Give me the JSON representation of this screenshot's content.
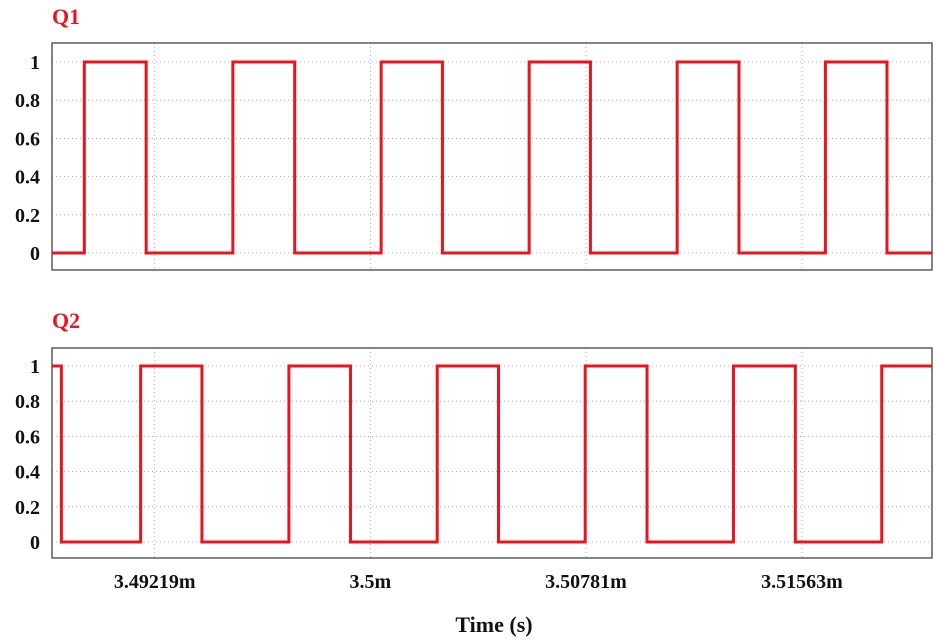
{
  "chart_data": [
    {
      "type": "line",
      "title": "Q1",
      "ylim": [
        0,
        1
      ],
      "yticks": [
        0,
        0.2,
        0.4,
        0.6,
        0.8,
        1
      ],
      "ytick_labels": [
        "0",
        "0.2",
        "0.4",
        "0.6",
        "0.8",
        "1"
      ],
      "xlim": [
        3.48847,
        3.52034
      ],
      "grid": true,
      "color": "#e8141f",
      "series": [
        {
          "x": [
            3.48847,
            3.48964,
            3.48964,
            3.49188,
            3.49188,
            3.49502,
            3.49502,
            3.49726,
            3.49726,
            3.50039,
            3.50039,
            3.50261,
            3.50261,
            3.50575,
            3.50575,
            3.50797,
            3.50797,
            3.51111,
            3.51111,
            3.51335,
            3.51335,
            3.51648,
            3.51648,
            3.51871,
            3.51871,
            3.51933,
            3.51933,
            3.52034
          ],
          "y": [
            0,
            0,
            1,
            1,
            0,
            0,
            1,
            1,
            0,
            0,
            1,
            1,
            0,
            0,
            1,
            1,
            0,
            0,
            1,
            1,
            0,
            0,
            1,
            1,
            0,
            0,
            0,
            0
          ]
        }
      ]
    },
    {
      "type": "line",
      "title": "Q2",
      "ylim": [
        0,
        1
      ],
      "yticks": [
        0,
        0.2,
        0.4,
        0.6,
        0.8,
        1
      ],
      "ytick_labels": [
        "0",
        "0.2",
        "0.4",
        "0.6",
        "0.8",
        "1"
      ],
      "xlim": [
        3.48847,
        3.52034
      ],
      "xticks": [
        3.49219,
        3.5,
        3.50781,
        3.51563
      ],
      "xtick_labels": [
        "3.49219m",
        "3.5m",
        "3.50781m",
        "3.51563m"
      ],
      "xlabel": "Time (s)",
      "grid": true,
      "color": "#e8141f",
      "series": [
        {
          "x": [
            3.48847,
            3.48881,
            3.48881,
            3.49168,
            3.49168,
            3.4939,
            3.4939,
            3.49705,
            3.49705,
            3.49928,
            3.49928,
            3.50242,
            3.50242,
            3.50464,
            3.50464,
            3.50778,
            3.50778,
            3.51002,
            3.51002,
            3.51315,
            3.51315,
            3.51539,
            3.51539,
            3.51852,
            3.51852,
            3.51933,
            3.51933,
            3.52034
          ],
          "y": [
            1,
            1,
            0,
            0,
            1,
            1,
            0,
            0,
            1,
            1,
            0,
            0,
            1,
            1,
            0,
            0,
            1,
            1,
            0,
            0,
            1,
            1,
            0,
            0,
            1,
            1,
            1,
            1
          ]
        }
      ]
    }
  ]
}
